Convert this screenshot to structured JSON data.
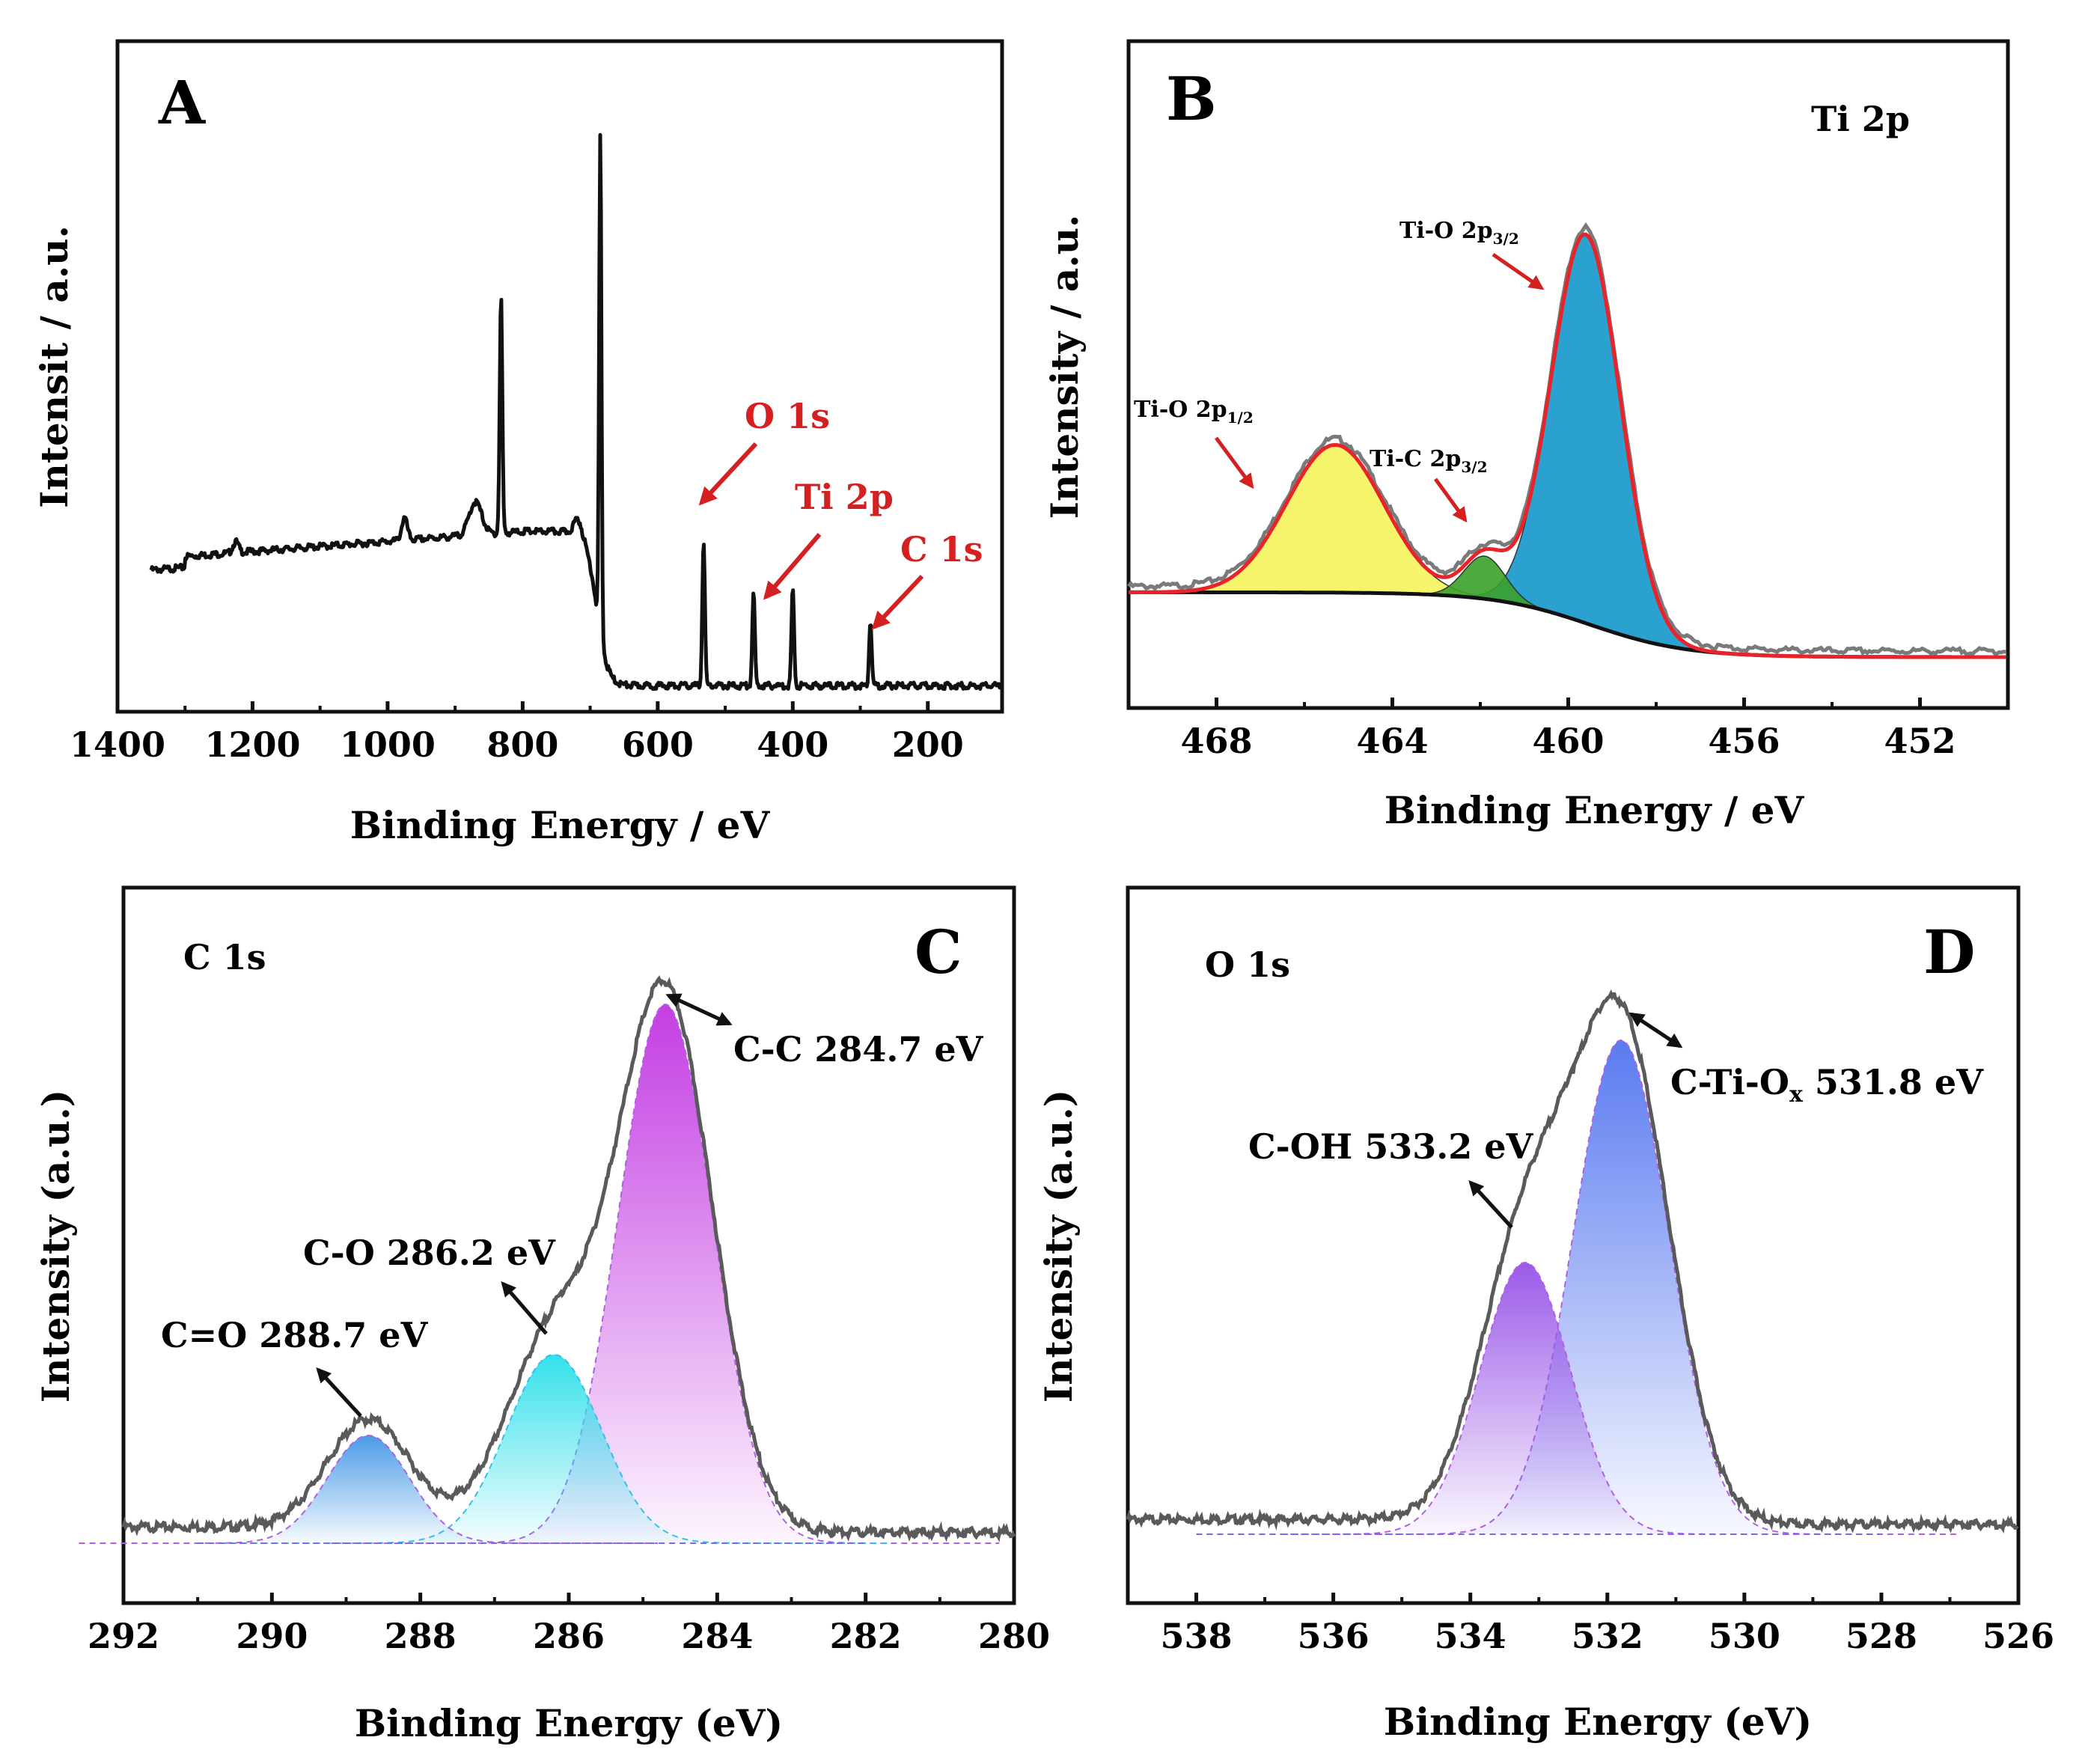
{
  "colors": {
    "red_annotation": "#d42020",
    "spectrum": "#111111",
    "raw_gray": "#7a7a7a",
    "envelope_red": "#e8232a",
    "ti_o_half": "#f5f35a",
    "ti_c": "#3aa12a",
    "ti_o_3half": "#1f9ccc",
    "c1s_cc": "#c43ee3",
    "c1s_co": "#34e0ea",
    "c1s_c_eq_o": "#4a9be6",
    "o1s_cti": "#5a7af0",
    "o1s_coh": "#9b5ae8"
  },
  "chart_data": [
    {
      "panel": "A",
      "type": "line",
      "title": "",
      "xlabel": "Binding Energy / eV",
      "ylabel": "Intensit / a.u.",
      "xlim": [
        1400,
        90
      ],
      "x_reversed": true,
      "xticks": [
        "1400",
        "1200",
        "1000",
        "800",
        "600",
        "400",
        "200"
      ],
      "annotations": [
        {
          "label": "O 1s",
          "target_x": 532
        },
        {
          "label": "Ti 2p",
          "target_x": 458
        },
        {
          "label": "C 1s",
          "target_x": 285
        }
      ],
      "peaks": [
        {
          "x": 685,
          "relative_height": 1.0
        },
        {
          "x": 832,
          "relative_height": 0.47
        },
        {
          "x": 532,
          "relative_height": 0.29
        },
        {
          "x": 458,
          "relative_height": 0.18
        },
        {
          "x": 400,
          "relative_height": 0.19
        },
        {
          "x": 285,
          "relative_height": 0.13
        }
      ]
    },
    {
      "panel": "B",
      "type": "area",
      "title": "Ti 2p",
      "xlabel": "Binding Energy / eV",
      "ylabel": "Intensity / a.u.",
      "xlim": [
        470,
        450
      ],
      "x_reversed": true,
      "xticks": [
        "468",
        "464",
        "460",
        "456",
        "452"
      ],
      "components": [
        {
          "name": "Ti-O 2p",
          "sub": "1/2",
          "center": 465.3,
          "fwhm": 2.6,
          "height": 0.38
        },
        {
          "name": "Ti-C 2p",
          "sub": "3/2",
          "center": 461.9,
          "fwhm": 1.1,
          "height": 0.11
        },
        {
          "name": "Ti-O 2p",
          "sub": "3/2",
          "center": 459.6,
          "fwhm": 1.85,
          "height": 1.0
        }
      ]
    },
    {
      "panel": "C",
      "type": "area",
      "title": "C 1s",
      "xlabel": "Binding Energy (eV)",
      "ylabel": "Intensity (a.u.)",
      "xlim": [
        292,
        280
      ],
      "x_reversed": true,
      "xticks": [
        "292",
        "290",
        "288",
        "286",
        "284",
        "282",
        "280"
      ],
      "components": [
        {
          "label": "C-C 284.7 eV",
          "center": 284.7,
          "fwhm": 1.5,
          "height": 1.0
        },
        {
          "label": "C-O 286.2 eV",
          "center": 286.2,
          "fwhm": 1.5,
          "height": 0.35
        },
        {
          "label": "C=O 288.7 eV",
          "center": 288.7,
          "fwhm": 1.3,
          "height": 0.2
        }
      ]
    },
    {
      "panel": "D",
      "type": "area",
      "title": "O 1s",
      "xlabel": "Binding Energy (eV)",
      "ylabel": "Intensity (a.u.)",
      "xlim": [
        539,
        526
      ],
      "x_reversed": true,
      "xticks": [
        "538",
        "536",
        "534",
        "532",
        "530",
        "528",
        "526"
      ],
      "components": [
        {
          "label": "C-Ti-O",
          "sub": "x",
          "suffix": " 531.8 eV",
          "center": 531.8,
          "fwhm": 1.65,
          "height": 1.0
        },
        {
          "label": "C-OH 533.2 eV",
          "center": 533.2,
          "fwhm": 1.55,
          "height": 0.55
        }
      ]
    }
  ]
}
